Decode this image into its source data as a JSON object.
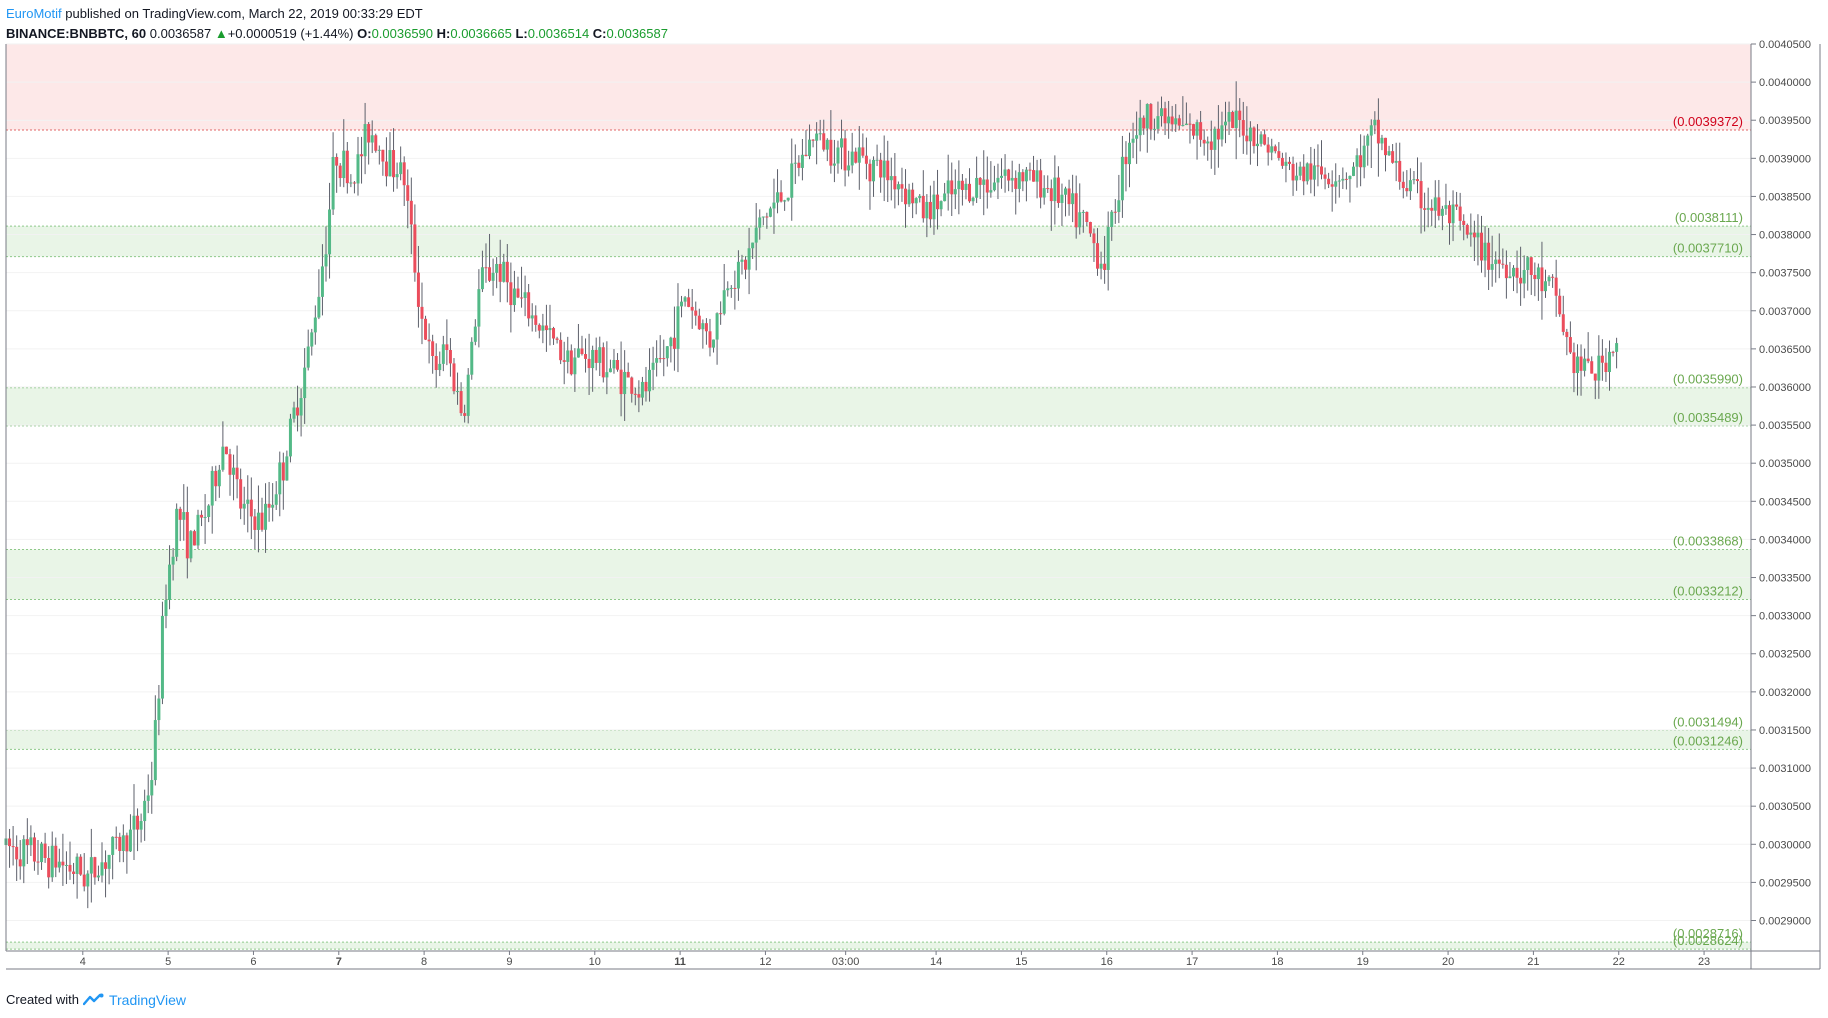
{
  "header": {
    "author": "EuroMotif",
    "published_text": " published on TradingView.com, March 22, 2019 00:33:29 EDT",
    "symbol": "BINANCE:BNBBTC, 60",
    "last_price": "0.0036587",
    "change_arrow": "▲",
    "change": "+0.0000519 (+1.44%)",
    "o_label": "O:",
    "o_value": "0.0036590",
    "h_label": "H:",
    "h_value": "0.0036665",
    "l_label": "L:",
    "l_value": "0.0036514",
    "c_label": "C:",
    "c_value": "0.0036587"
  },
  "footer": {
    "created_with": "Created with",
    "brand": "TradingView",
    "logo_icon": "tradingview-logo-icon"
  },
  "colors": {
    "up": "#53b987",
    "down": "#eb4d5c",
    "grid": "#e6e6e6",
    "support": "#e9f5e7",
    "support_line": "#8fc98a",
    "support_label": "#6aa84f",
    "resistance": "#fde8e8",
    "resistance_line": "#e06666",
    "resistance_label": "#d0021b"
  },
  "chart_data": {
    "type": "candlestick",
    "symbol": "BINANCE:BNBBTC",
    "interval": "60",
    "ylim": [
      0.00286,
      0.00405
    ],
    "y_ticks": [
      "0.0040500",
      "0.0040000",
      "0.0039500",
      "0.0039000",
      "0.0038500",
      "0.0038000",
      "0.0037500",
      "0.0037000",
      "0.0036500",
      "0.0036000",
      "0.0035500",
      "0.0035000",
      "0.0034500",
      "0.0034000",
      "0.0033500",
      "0.0033000",
      "0.0032500",
      "0.0032000",
      "0.0031500",
      "0.0031000",
      "0.0030500",
      "0.0030000",
      "0.0029500",
      "0.0029000"
    ],
    "x_ticks": [
      {
        "label": "4",
        "day": 4.0,
        "bold": false
      },
      {
        "label": "5",
        "day": 5.0,
        "bold": false
      },
      {
        "label": "6",
        "day": 6.0,
        "bold": false
      },
      {
        "label": "7",
        "day": 7.0,
        "bold": true
      },
      {
        "label": "8",
        "day": 8.0,
        "bold": false
      },
      {
        "label": "9",
        "day": 9.0,
        "bold": false
      },
      {
        "label": "10",
        "day": 10.0,
        "bold": false
      },
      {
        "label": "11",
        "day": 11.0,
        "bold": true
      },
      {
        "label": "12",
        "day": 12.0,
        "bold": false
      },
      {
        "label": "03:00",
        "day": 12.94,
        "bold": false
      },
      {
        "label": "14",
        "day": 14.0,
        "bold": false
      },
      {
        "label": "15",
        "day": 15.0,
        "bold": false
      },
      {
        "label": "16",
        "day": 16.0,
        "bold": false
      },
      {
        "label": "17",
        "day": 17.0,
        "bold": false
      },
      {
        "label": "18",
        "day": 18.0,
        "bold": false
      },
      {
        "label": "19",
        "day": 19.0,
        "bold": false
      },
      {
        "label": "20",
        "day": 20.0,
        "bold": false
      },
      {
        "label": "21",
        "day": 21.0,
        "bold": false
      },
      {
        "label": "22",
        "day": 22.0,
        "bold": false
      },
      {
        "label": "23",
        "day": 23.0,
        "bold": false
      }
    ],
    "zones": [
      {
        "kind": "resistance",
        "top": 0.00405,
        "bottom": 0.0039372,
        "labels": [
          "(0.0039372)"
        ]
      },
      {
        "kind": "support",
        "top": 0.0038111,
        "bottom": 0.003771,
        "labels": [
          "(0.0038111)",
          "(0.0037710)"
        ]
      },
      {
        "kind": "support",
        "top": 0.003599,
        "bottom": 0.0035489,
        "labels": [
          "(0.0035990)",
          "(0.0035489)"
        ]
      },
      {
        "kind": "support",
        "top": 0.0033868,
        "bottom": 0.0033212,
        "labels": [
          "(0.0033868)",
          "(0.0033212)"
        ]
      },
      {
        "kind": "support",
        "top": 0.0031494,
        "bottom": 0.0031246,
        "labels": [
          "(0.0031494)",
          "(0.0031246)"
        ]
      },
      {
        "kind": "support",
        "top": 0.0028716,
        "bottom": 0.0028624,
        "labels": [
          "(0.0028716)",
          "(0.0028624)"
        ]
      }
    ],
    "path": [
      [
        3.1,
        0.002999
      ],
      [
        3.5,
        0.002985
      ],
      [
        3.8,
        0.002975
      ],
      [
        4.1,
        0.002958
      ],
      [
        4.4,
        0.002992
      ],
      [
        4.7,
        0.003025
      ],
      [
        4.85,
        0.00309
      ],
      [
        4.92,
        0.003185
      ],
      [
        5.0,
        0.00332
      ],
      [
        5.15,
        0.00344
      ],
      [
        5.3,
        0.00339
      ],
      [
        5.5,
        0.00344
      ],
      [
        5.7,
        0.00353
      ],
      [
        5.9,
        0.00344
      ],
      [
        6.15,
        0.00342
      ],
      [
        6.4,
        0.0035
      ],
      [
        6.55,
        0.00358
      ],
      [
        6.7,
        0.00365
      ],
      [
        6.9,
        0.0038
      ],
      [
        7.0,
        0.00391
      ],
      [
        7.2,
        0.00387
      ],
      [
        7.4,
        0.00394
      ],
      [
        7.6,
        0.0039
      ],
      [
        7.8,
        0.00388
      ],
      [
        8.0,
        0.0037
      ],
      [
        8.15,
        0.00362
      ],
      [
        8.3,
        0.00365
      ],
      [
        8.5,
        0.00356
      ],
      [
        8.7,
        0.00374
      ],
      [
        8.9,
        0.00376
      ],
      [
        9.1,
        0.00372
      ],
      [
        9.4,
        0.00368
      ],
      [
        9.7,
        0.00364
      ],
      [
        10.0,
        0.00364
      ],
      [
        10.3,
        0.00362
      ],
      [
        10.6,
        0.00359
      ],
      [
        10.9,
        0.00365
      ],
      [
        11.1,
        0.00372
      ],
      [
        11.4,
        0.00366
      ],
      [
        11.6,
        0.00374
      ],
      [
        11.8,
        0.00376
      ],
      [
        12.0,
        0.00382
      ],
      [
        12.3,
        0.00386
      ],
      [
        12.6,
        0.00393
      ],
      [
        12.9,
        0.00391
      ],
      [
        13.2,
        0.0039
      ],
      [
        13.6,
        0.00387
      ],
      [
        13.9,
        0.00383
      ],
      [
        14.2,
        0.00385
      ],
      [
        14.6,
        0.00387
      ],
      [
        15.0,
        0.00388
      ],
      [
        15.4,
        0.00386
      ],
      [
        15.8,
        0.00381
      ],
      [
        16.0,
        0.00376
      ],
      [
        16.3,
        0.00393
      ],
      [
        16.6,
        0.00396
      ],
      [
        16.9,
        0.00394
      ],
      [
        17.2,
        0.00393
      ],
      [
        17.6,
        0.003945
      ],
      [
        17.9,
        0.00392
      ],
      [
        18.2,
        0.00388
      ],
      [
        18.6,
        0.00388
      ],
      [
        18.9,
        0.00388
      ],
      [
        19.2,
        0.003935
      ],
      [
        19.5,
        0.00387
      ],
      [
        19.8,
        0.00384
      ],
      [
        20.1,
        0.00382
      ],
      [
        20.4,
        0.00378
      ],
      [
        20.7,
        0.00376
      ],
      [
        21.0,
        0.00375
      ],
      [
        21.3,
        0.00372
      ],
      [
        21.5,
        0.00363
      ],
      [
        21.8,
        0.00362
      ],
      [
        22.0,
        0.003659
      ]
    ]
  }
}
